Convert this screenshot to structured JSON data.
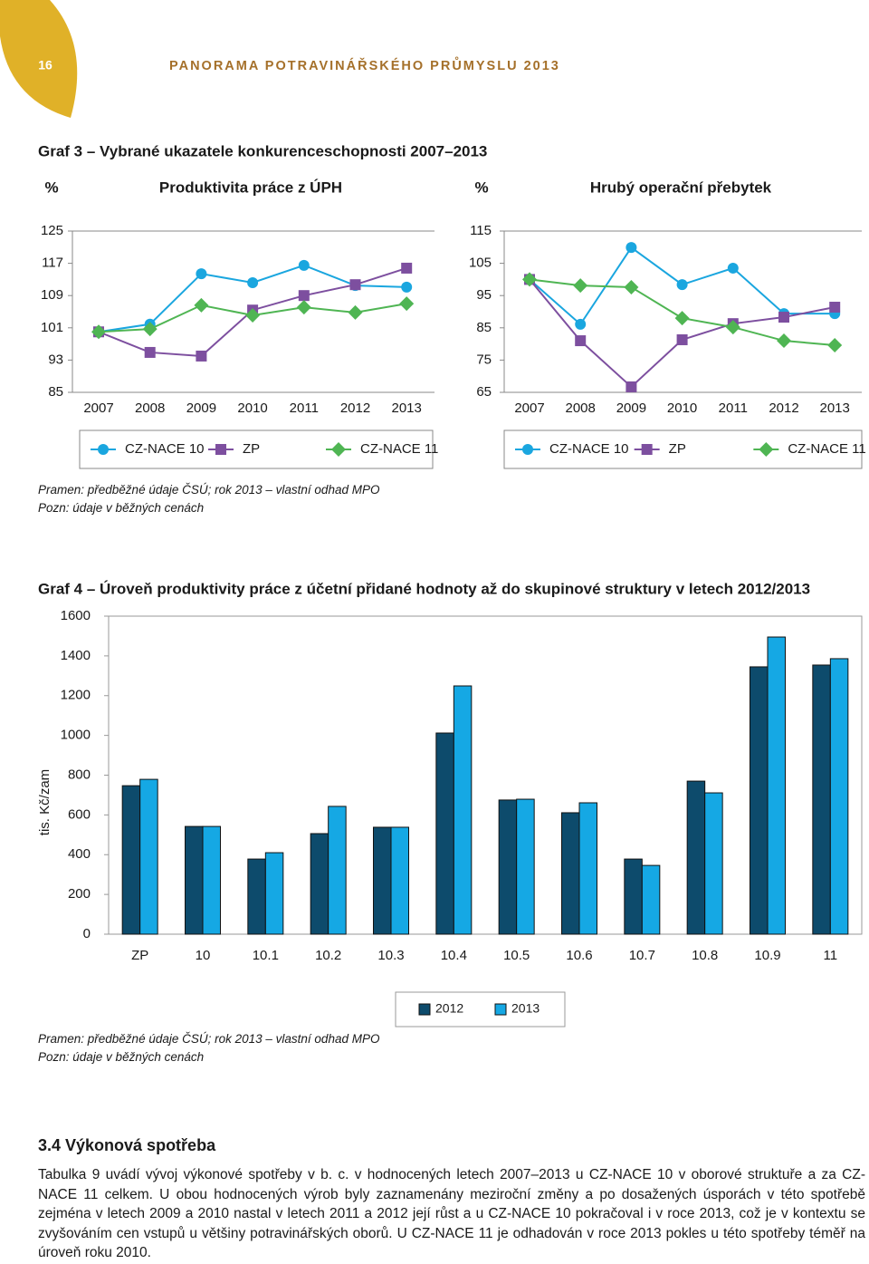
{
  "header": {
    "page_number": "16",
    "title": "PANORAMA POTRAVINÁŘSKÉHO PRŮMYSLU 2013"
  },
  "graf3_title": "Graf 3 – Vybrané ukazatele konkurenceschopnosti 2007–2013",
  "chart_data": [
    {
      "type": "line",
      "title": "Produktivita práce z ÚPH",
      "y_label": "%",
      "categories": [
        "2007",
        "2008",
        "2009",
        "2010",
        "2011",
        "2012",
        "2013"
      ],
      "series": [
        {
          "name": "CZ-NACE 10",
          "color": "#1aa6df",
          "marker": "circle",
          "values": [
            100,
            101.9,
            114.4,
            112.2,
            116.5,
            111.5,
            111.1
          ]
        },
        {
          "name": "ZP",
          "color": "#7d4f9f",
          "marker": "square",
          "values": [
            100,
            94.9,
            94,
            105.4,
            109,
            111.7,
            115.8
          ]
        },
        {
          "name": "CZ-NACE 11",
          "color": "#4fb553",
          "marker": "diamond",
          "values": [
            100,
            100.7,
            106.6,
            104.1,
            106.1,
            104.8,
            107
          ]
        }
      ],
      "ylim": [
        85,
        125
      ],
      "yticks": [
        85,
        93,
        101,
        109,
        117,
        125
      ]
    },
    {
      "type": "line",
      "title": "Hrubý operační přebytek",
      "y_label": "%",
      "categories": [
        "2007",
        "2008",
        "2009",
        "2010",
        "2011",
        "2012",
        "2013"
      ],
      "series": [
        {
          "name": "CZ-NACE 10",
          "color": "#1aa6df",
          "marker": "circle",
          "values": [
            100,
            86.1,
            109.9,
            98.4,
            103.5,
            89.4,
            89.4
          ]
        },
        {
          "name": "ZP",
          "color": "#7d4f9f",
          "marker": "square",
          "values": [
            100,
            81,
            66.7,
            81.3,
            86.3,
            88.3,
            91.4
          ]
        },
        {
          "name": "CZ-NACE 11",
          "color": "#4fb553",
          "marker": "diamond",
          "values": [
            100,
            98.1,
            97.6,
            88,
            85.2,
            81,
            79.6
          ]
        }
      ],
      "ylim": [
        65,
        115
      ],
      "yticks": [
        65,
        75,
        85,
        95,
        105,
        115
      ]
    },
    {
      "type": "bar",
      "title": "Graf 4 – Úroveň produktivity práce z účetní přidané hodnoty až do skupinové struktury v letech 2012/2013",
      "y_label": "tis. Kč/zam",
      "categories": [
        "ZP",
        "10",
        "10.1",
        "10.2",
        "10.3",
        "10.4",
        "10.5",
        "10.6",
        "10.7",
        "10.8",
        "10.9",
        "11"
      ],
      "series": [
        {
          "name": "2012",
          "color": "#0d4b6c",
          "values": [
            747,
            542,
            378,
            506,
            538,
            1012,
            675,
            611,
            378,
            770,
            1345,
            1354
          ]
        },
        {
          "name": "2013",
          "color": "#15a8e4",
          "values": [
            779,
            542,
            410,
            643,
            538,
            1249,
            679,
            661,
            346,
            711,
            1495,
            1386
          ]
        }
      ],
      "ylim": [
        0,
        1600
      ],
      "yticks": [
        0,
        200,
        400,
        600,
        800,
        1000,
        1200,
        1400,
        1600
      ]
    }
  ],
  "notes_graf3": [
    "Pramen: předběžné údaje ČSÚ; rok 2013 – vlastní odhad MPO",
    "Pozn: údaje v běžných cenách"
  ],
  "notes_graf4": [
    "Pramen: předběžné údaje ČSÚ; rok 2013 – vlastní odhad MPO",
    "Pozn: údaje v běžných cenách"
  ],
  "section": {
    "heading": "3.4 Výkonová spotřeba",
    "paragraph": "Tabulka 9 uvádí vývoj výkonové spotřeby v b. c. v hodnocených letech 2007–2013 u CZ-NACE 10 v oborové struktuře a za CZ-NACE 11 celkem. U obou hodnocených výrob byly zaznamenány meziroční změny a po dosažených úsporách v této spotřebě zejména v letech 2009 a 2010 nastal v letech 2011 a 2012 její růst a u CZ-NACE 10 pokračoval i v roce 2013, což je v kontextu se zvyšováním cen vstupů u většiny potravinářských oborů. U CZ-NACE 11 je odhadován v roce 2013 pokles u této spotřeby téměř na úroveň roku 2010."
  }
}
